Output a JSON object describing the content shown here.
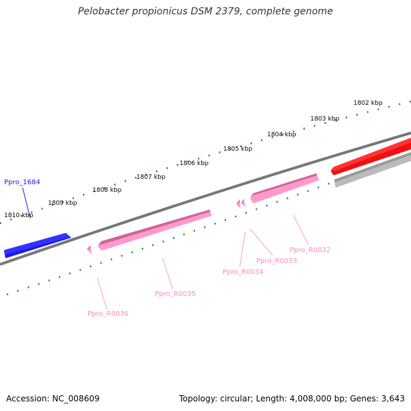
{
  "title": "Pelobacter propionicus DSM 2379, complete genome",
  "footer": {
    "accession": "Accession: NC_008609",
    "stats": "Topology: circular; Length: 4,008,000 bp; Genes: 3,643"
  },
  "colors": {
    "backbone": "#777777",
    "tick": "#228822",
    "forward_gene": "#1a1ae6",
    "reverse_rna": "#ff99cc",
    "highlight_gene": "#ee1111",
    "other_gene": "#bbbbbb"
  },
  "scale_labels": [
    "1810 kbp",
    "1809 kbp",
    "1808 kbp",
    "1807 kbp",
    "1806 kbp",
    "1805 kbp",
    "1804 kbp",
    "1803 kbp",
    "1802 kbp"
  ],
  "gene_labels": {
    "ppro_1684": "Ppro_1684",
    "ppro_r0036": "Ppro_R0036",
    "ppro_r0035": "Ppro_R0035",
    "ppro_r0034": "Ppro_R0034",
    "ppro_r0033": "Ppro_R0033",
    "ppro_r0032": "Ppro_R0032"
  }
}
